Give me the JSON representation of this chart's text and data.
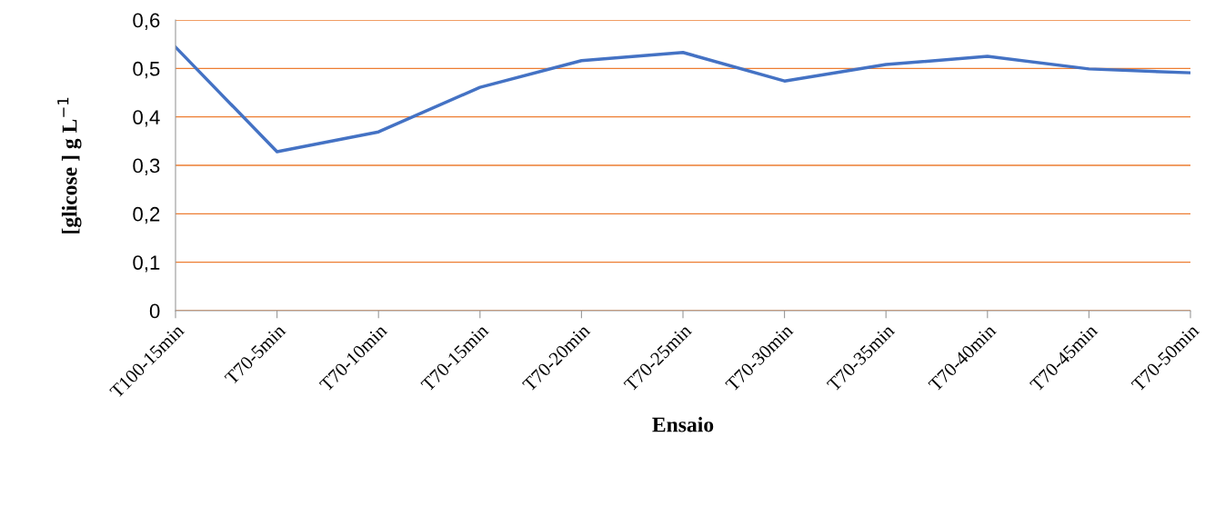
{
  "chart_data": {
    "type": "line",
    "xlabel": "Ensaio",
    "ylabel": "[glicose ] g L$^{−1}$",
    "categories": [
      "T100-15min",
      "T70-5min",
      "T70-10min",
      "T70-15min",
      "T70-20min",
      "T70-25min",
      "T70-30min",
      "T70-35min",
      "T70-40min",
      "T70-45min",
      "T70-50min"
    ],
    "series": [
      {
        "color": "#4472c4",
        "values": [
          0.544,
          0.328,
          0.369,
          0.461,
          0.516,
          0.533,
          0.474,
          0.508,
          0.525,
          0.499,
          0.491
        ]
      }
    ],
    "ylim": [
      0,
      0.6
    ],
    "yticks": [
      {
        "value": 0,
        "label": "0"
      },
      {
        "value": 0.1,
        "label": "0,1"
      },
      {
        "value": 0.2,
        "label": "0,2"
      },
      {
        "value": 0.3,
        "label": "0,3"
      },
      {
        "value": 0.4,
        "label": "0,4"
      },
      {
        "value": 0.5,
        "label": "0,5"
      },
      {
        "value": 0.6,
        "label": "0,6"
      }
    ],
    "grid": "y",
    "legend": false,
    "marker": "none",
    "line_style": "solid"
  }
}
